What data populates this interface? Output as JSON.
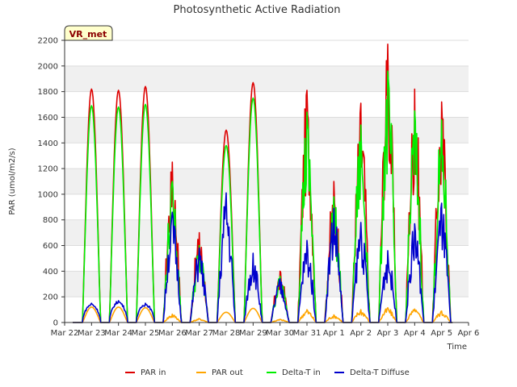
{
  "chart_data": {
    "type": "line",
    "title": "Photosynthetic Active Radiation",
    "xlabel": "Time",
    "ylabel": "PAR (umol/m2/s)",
    "ylim": [
      0,
      2200
    ],
    "yticks": [
      0,
      200,
      400,
      600,
      800,
      1000,
      1200,
      1400,
      1600,
      1800,
      2000,
      2200
    ],
    "xlim": [
      0,
      15
    ],
    "xticks": [
      "Mar 22",
      "Mar 23",
      "Mar 24",
      "Mar 25",
      "Mar 26",
      "Mar 27",
      "Mar 28",
      "Mar 29",
      "Mar 30",
      "Mar 31",
      "Apr 1",
      "Apr 2",
      "Apr 3",
      "Apr 4",
      "Apr 5",
      "Apr 6"
    ],
    "grid": "horizontal bands",
    "badge": "VR_met",
    "legend_position": "bottom",
    "day_peaks_note": "x in days since Mar 22; daily peak values per series (data units)",
    "days": [
      1,
      2,
      3,
      4,
      5,
      6,
      7,
      8,
      9,
      10,
      11,
      12,
      13,
      14
    ],
    "series": [
      {
        "name": "PAR in",
        "color": "#dd0000",
        "peaks": [
          1820,
          1810,
          1840,
          1250,
          700,
          1500,
          1870,
          400,
          1810,
          1100,
          1710,
          2170,
          1820,
          1720
        ]
      },
      {
        "name": "PAR out",
        "color": "#ffa500",
        "peaks": [
          120,
          120,
          115,
          65,
          30,
          80,
          110,
          25,
          100,
          60,
          100,
          115,
          105,
          90
        ]
      },
      {
        "name": "Delta-T in",
        "color": "#00ee00",
        "peaks": [
          1690,
          1680,
          1700,
          1100,
          600,
          1380,
          1750,
          360,
          1640,
          980,
          1540,
          1960,
          1650,
          1580
        ]
      },
      {
        "name": "Delta-T Diffuse",
        "color": "#0000cc",
        "peaks": [
          150,
          170,
          150,
          860,
          580,
          1010,
          540,
          340,
          640,
          890,
          780,
          560,
          770,
          930
        ]
      }
    ]
  }
}
